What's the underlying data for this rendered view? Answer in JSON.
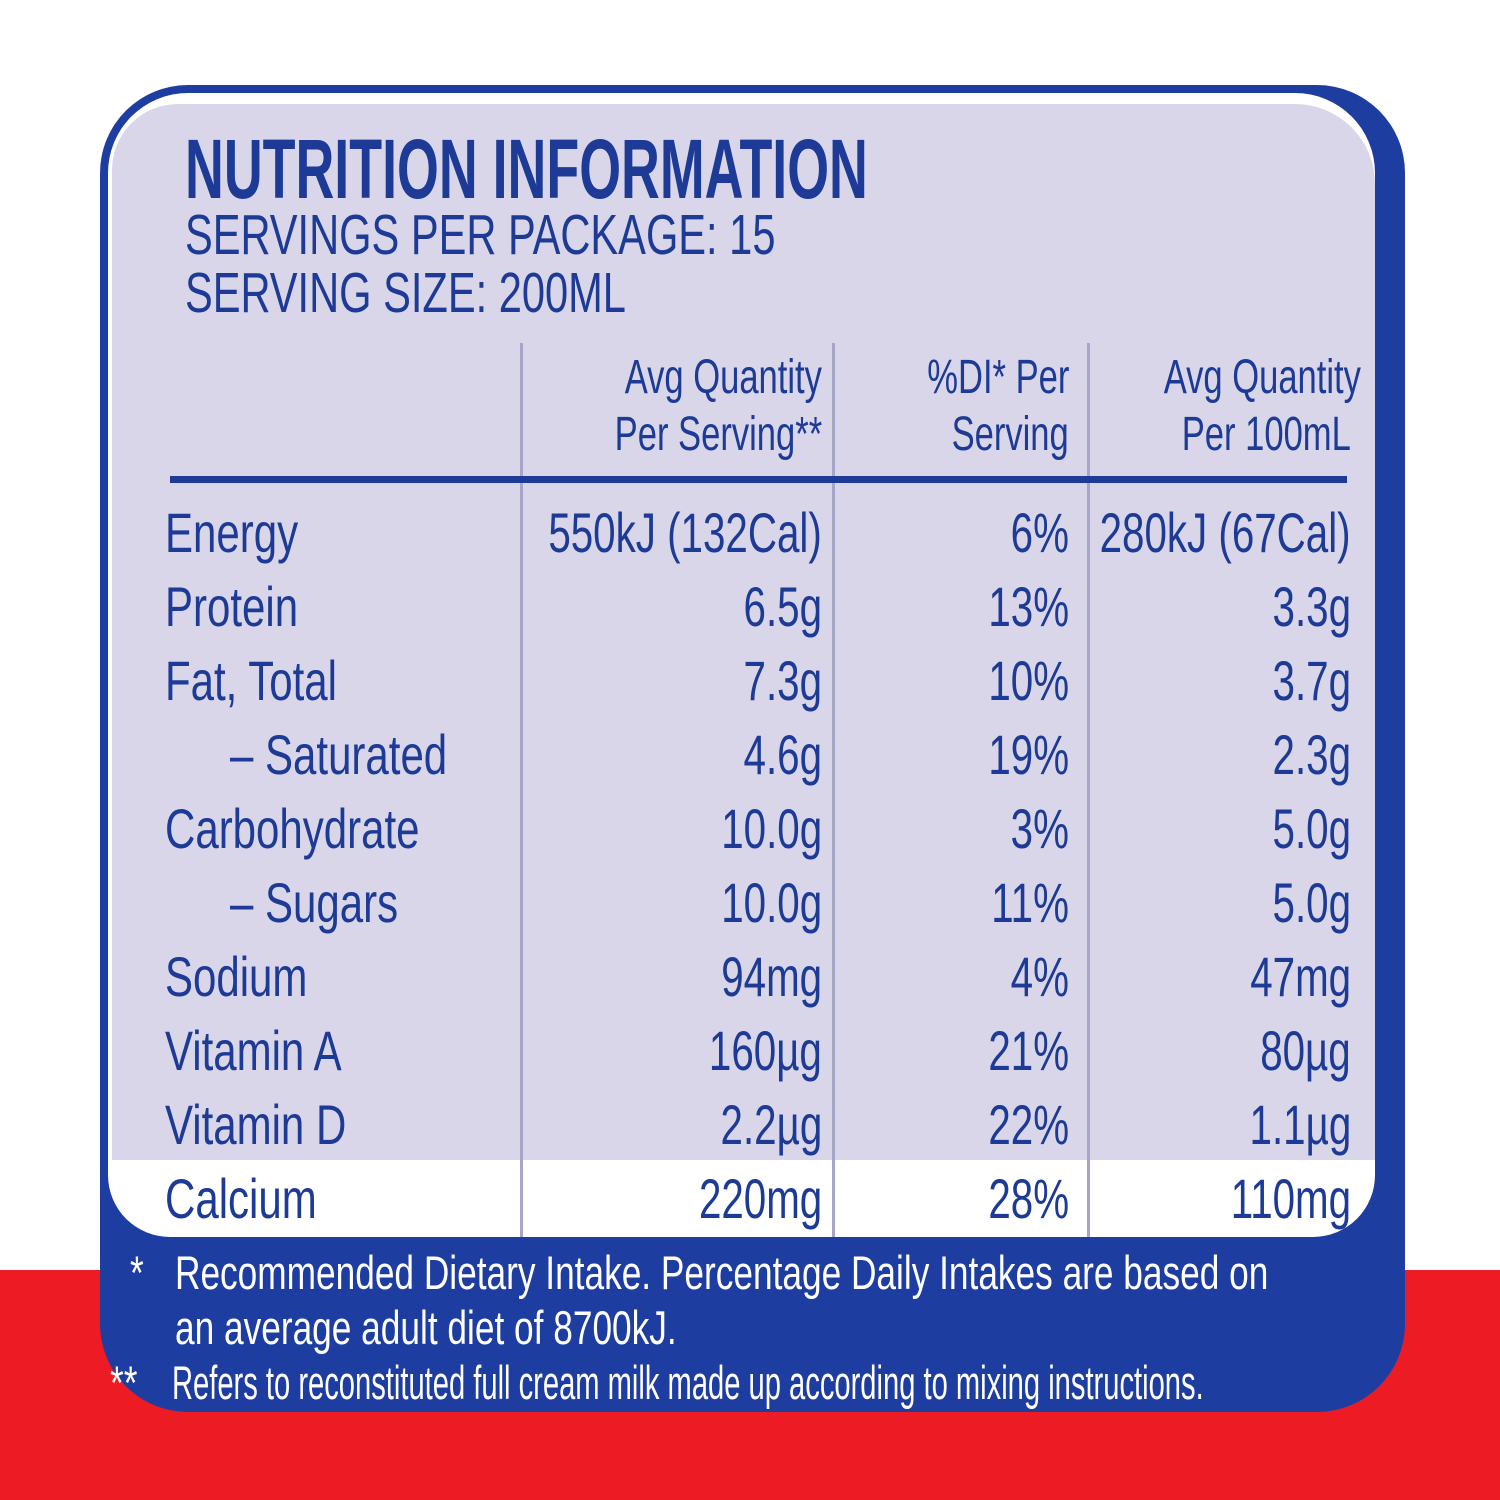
{
  "colors": {
    "card_blue": "#1e3da0",
    "text_blue": "#1c3a96",
    "panel_lavender": "#d8d6e8",
    "band_red": "#ed1c24",
    "divider": "#a6a6c8"
  },
  "header": {
    "title": "NUTRITION INFORMATION",
    "servings_per_package": "SERVINGS PER PACKAGE: 15",
    "serving_size": "SERVING SIZE: 200ML"
  },
  "table": {
    "column_headers": [
      {
        "lines": [
          "Avg Quantity",
          "Per Serving**"
        ]
      },
      {
        "lines": [
          "%DI* Per",
          "Serving"
        ]
      },
      {
        "lines": [
          "Avg Quantity",
          "Per 100mL"
        ]
      }
    ],
    "rows": [
      {
        "label": "Energy",
        "indent": false,
        "per_serving": "550kJ (132Cal)",
        "di_per_serving": "6%",
        "per_100ml": "280kJ (67Cal)"
      },
      {
        "label": "Protein",
        "indent": false,
        "per_serving": "6.5g",
        "di_per_serving": "13%",
        "per_100ml": "3.3g"
      },
      {
        "label": "Fat, Total",
        "indent": false,
        "per_serving": "7.3g",
        "di_per_serving": "10%",
        "per_100ml": "3.7g"
      },
      {
        "label": "– Saturated",
        "indent": true,
        "per_serving": "4.6g",
        "di_per_serving": "19%",
        "per_100ml": "2.3g"
      },
      {
        "label": "Carbohydrate",
        "indent": false,
        "per_serving": "10.0g",
        "di_per_serving": "3%",
        "per_100ml": "5.0g"
      },
      {
        "label": "– Sugars",
        "indent": true,
        "per_serving": "10.0g",
        "di_per_serving": "11%",
        "per_100ml": "5.0g"
      },
      {
        "label": "Sodium",
        "indent": false,
        "per_serving": "94mg",
        "di_per_serving": "4%",
        "per_100ml": "47mg"
      },
      {
        "label": "Vitamin A",
        "indent": false,
        "per_serving": "160µg",
        "di_per_serving": "21%",
        "per_100ml": "80µg"
      },
      {
        "label": "Vitamin D",
        "indent": false,
        "per_serving": "2.2µg",
        "di_per_serving": "22%",
        "per_100ml": "1.1µg"
      },
      {
        "label": "Calcium",
        "indent": false,
        "per_serving": "220mg",
        "di_per_serving": "28%",
        "per_100ml": "110mg"
      }
    ]
  },
  "footnotes": [
    {
      "marker": "*",
      "lines": [
        "Recommended Dietary Intake. Percentage Daily Intakes are based on",
        "an average adult diet of 8700kJ."
      ]
    },
    {
      "marker": "**",
      "lines": [
        "Refers to reconstituted full cream milk made up according to mixing instructions."
      ]
    }
  ]
}
